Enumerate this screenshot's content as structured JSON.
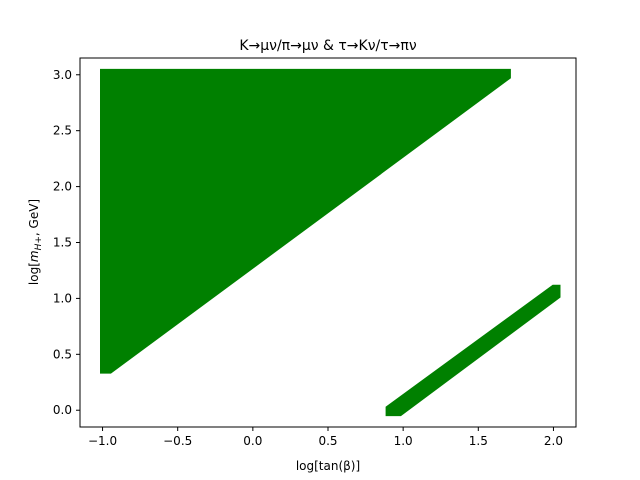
{
  "chart_data": {
    "type": "area",
    "title": "K→μν/π→μν & τ→Kν/τ→πν",
    "xlabel": "log[tan(β)]",
    "ylabel": "log[m_{H+}, GeV]",
    "ylabel_main": "log[",
    "ylabel_sym": "m",
    "ylabel_sub": "H+",
    "ylabel_tail": ", GeV]",
    "xlim": [
      -1.15,
      2.15
    ],
    "ylim": [
      -0.15,
      3.15
    ],
    "x_ticks": [
      -1.0,
      -0.5,
      0.0,
      0.5,
      1.0,
      1.5,
      2.0
    ],
    "x_tick_labels": [
      "−1.0",
      "−0.5",
      "0.0",
      "0.5",
      "1.0",
      "1.5",
      "2.0"
    ],
    "y_ticks": [
      0.0,
      0.5,
      1.0,
      1.5,
      2.0,
      2.5,
      3.0
    ],
    "y_tick_labels": [
      "0.0",
      "0.5",
      "1.0",
      "1.5",
      "2.0",
      "2.5",
      "3.0"
    ],
    "grid": false,
    "fill_color": "#008000",
    "regions": [
      {
        "name": "allowed-region-upper",
        "polygon": [
          [
            -1.0,
            0.35
          ],
          [
            -1.0,
            3.03
          ],
          [
            1.7,
            3.03
          ],
          [
            1.7,
            2.98
          ],
          [
            -0.95,
            0.35
          ]
        ]
      },
      {
        "name": "allowed-region-lower",
        "polygon": [
          [
            0.9,
            -0.03
          ],
          [
            0.9,
            0.02
          ],
          [
            2.0,
            1.1
          ],
          [
            2.03,
            1.1
          ],
          [
            2.03,
            1.02
          ],
          [
            0.98,
            -0.03
          ]
        ]
      }
    ]
  }
}
